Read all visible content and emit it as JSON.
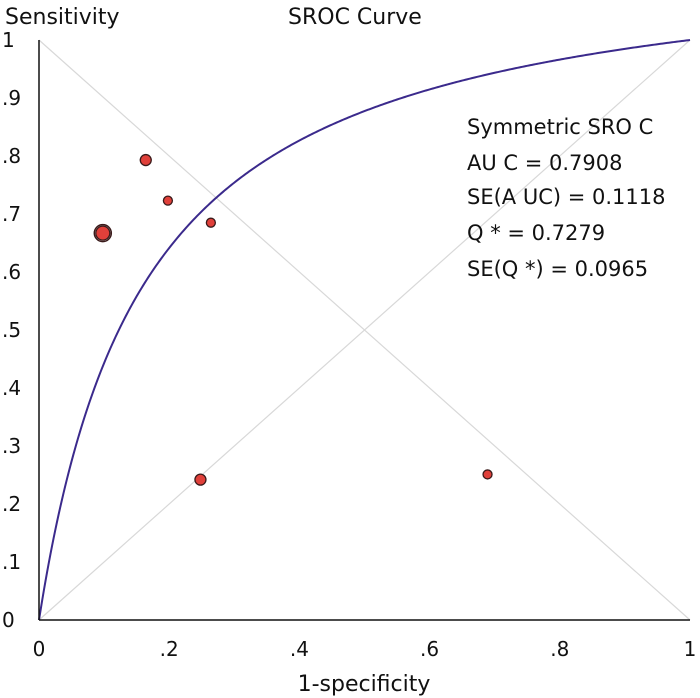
{
  "chart_data": {
    "type": "scatter",
    "title": "SROC Curve",
    "ylabel": "Sensitivity",
    "xlabel": "1-specificity",
    "xlim": [
      0,
      1
    ],
    "ylim": [
      0,
      1
    ],
    "x_ticks": [
      "0",
      ".2",
      ".4",
      ".6",
      ".8",
      "1"
    ],
    "y_ticks": [
      "0",
      ".1",
      ".2",
      ".3",
      ".4",
      ".5",
      ".6",
      ".7",
      ".8",
      ".9",
      "1"
    ],
    "grid": false,
    "diagonals": true,
    "points": [
      {
        "x": 0.098,
        "y": 0.667,
        "size": "large"
      },
      {
        "x": 0.164,
        "y": 0.793,
        "size": "medium"
      },
      {
        "x": 0.198,
        "y": 0.723,
        "size": "small"
      },
      {
        "x": 0.264,
        "y": 0.685,
        "size": "small"
      },
      {
        "x": 0.248,
        "y": 0.242,
        "size": "medium"
      },
      {
        "x": 0.689,
        "y": 0.251,
        "size": "small"
      }
    ],
    "curve": {
      "name": "Symmetric SROC",
      "auc": 0.7908,
      "q_star": 0.7279
    },
    "annotations": [
      "Symmetric SRO C",
      "AU C = 0.7908",
      "SE(A UC)  = 0.1118",
      "Q * = 0.7279",
      "SE(Q *) = 0.0965"
    ],
    "colors": {
      "curve": "#3b2a8c",
      "point_fill": "#e0403a",
      "point_stroke": "#3a1a1a",
      "axis": "#111111",
      "diagonal": "#d8d8d8"
    }
  }
}
